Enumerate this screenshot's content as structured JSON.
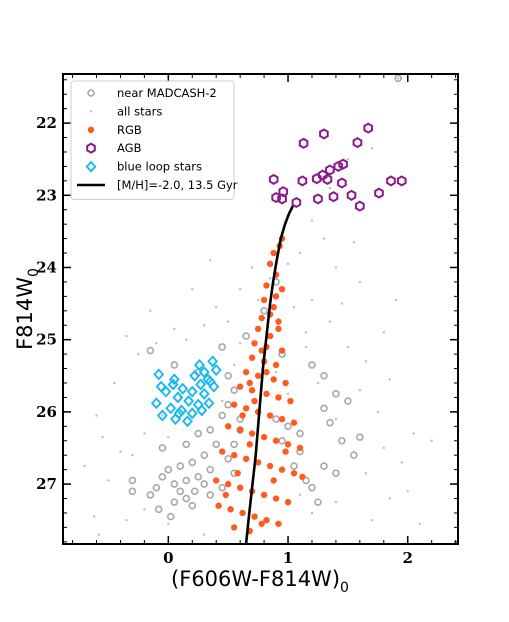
{
  "chart_data": {
    "type": "scatter",
    "xlabel": "(F606W-F814W)",
    "xlabel_sub": "0",
    "ylabel": "F814W",
    "ylabel_sub": "0",
    "xlim": [
      -0.88,
      2.42
    ],
    "ylim": [
      27.83,
      21.32
    ],
    "y_inverted": true,
    "x_ticks": [
      0,
      1,
      2
    ],
    "x_minor_step": 0.2,
    "y_ticks": [
      22,
      23,
      24,
      25,
      26,
      27
    ],
    "y_minor_step": 0.2,
    "legend_position": "top-left",
    "series": [
      {
        "name": "near MADCASH-2",
        "marker": "open-circle",
        "color": "#a8a8a8",
        "points": [
          [
            1.92,
            21.38
          ],
          [
            -0.15,
            25.15
          ],
          [
            0.05,
            25.35
          ],
          [
            0.25,
            25.45
          ],
          [
            0.5,
            25.5
          ],
          [
            0.55,
            25.7
          ],
          [
            0.5,
            25.9
          ],
          [
            0.45,
            26.05
          ],
          [
            0.6,
            26.25
          ],
          [
            0.55,
            26.45
          ],
          [
            0.4,
            26.45
          ],
          [
            0.3,
            26.6
          ],
          [
            0.2,
            26.7
          ],
          [
            0.1,
            26.75
          ],
          [
            0.0,
            26.8
          ],
          [
            -0.05,
            26.9
          ],
          [
            0.05,
            27.0
          ],
          [
            0.1,
            27.1
          ],
          [
            0.15,
            27.2
          ],
          [
            0.2,
            27.3
          ],
          [
            0.05,
            27.25
          ],
          [
            -0.1,
            27.05
          ],
          [
            -0.3,
            26.95
          ],
          [
            -0.3,
            27.1
          ],
          [
            0.25,
            26.9
          ],
          [
            0.3,
            27.0
          ],
          [
            0.35,
            27.15
          ],
          [
            0.15,
            26.95
          ],
          [
            -0.15,
            27.15
          ],
          [
            1.1,
            26.55
          ],
          [
            1.3,
            26.75
          ],
          [
            1.4,
            26.85
          ],
          [
            1.55,
            26.6
          ],
          [
            1.2,
            27.05
          ],
          [
            1.25,
            27.25
          ],
          [
            1.45,
            26.4
          ],
          [
            1.6,
            26.35
          ],
          [
            1.3,
            25.5
          ],
          [
            1.4,
            25.75
          ],
          [
            1.5,
            25.85
          ],
          [
            1.2,
            25.35
          ],
          [
            1.3,
            25.95
          ],
          [
            0.9,
            24.2
          ],
          [
            0.8,
            24.6
          ],
          [
            0.95,
            25.2
          ],
          [
            0.45,
            25.1
          ],
          [
            0.65,
            24.95
          ],
          [
            1.0,
            26.2
          ],
          [
            1.05,
            26.75
          ],
          [
            1.15,
            26.95
          ],
          [
            0.35,
            26.25
          ],
          [
            0.25,
            26.3
          ],
          [
            -0.05,
            26.5
          ],
          [
            0.55,
            26.85
          ],
          [
            0.45,
            27.05
          ],
          [
            0.5,
            26.65
          ],
          [
            0.35,
            26.8
          ],
          [
            0.22,
            27.1
          ],
          [
            0.6,
            26.1
          ],
          [
            0.15,
            26.45
          ],
          [
            1.35,
            26.15
          ],
          [
            0.9,
            26.1
          ],
          [
            0.95,
            26.4
          ],
          [
            1.1,
            26.3
          ],
          [
            -0.08,
            27.35
          ],
          [
            0.02,
            27.45
          ]
        ]
      },
      {
        "name": "all stars",
        "marker": "dot",
        "color": "#bdbdbd",
        "points": [
          [
            1.92,
            21.38
          ],
          [
            1.7,
            22.35
          ],
          [
            1.5,
            22.5
          ],
          [
            1.35,
            22.9
          ],
          [
            1.2,
            23.35
          ],
          [
            1.3,
            23.6
          ],
          [
            1.1,
            23.8
          ],
          [
            1.4,
            24.0
          ],
          [
            1.6,
            24.2
          ],
          [
            0.7,
            24.0
          ],
          [
            0.6,
            24.3
          ],
          [
            0.4,
            24.55
          ],
          [
            0.3,
            24.8
          ],
          [
            0.15,
            25.0
          ],
          [
            0.05,
            24.85
          ],
          [
            -0.1,
            25.05
          ],
          [
            -0.25,
            25.2
          ],
          [
            -0.45,
            25.6
          ],
          [
            -0.6,
            26.05
          ],
          [
            -0.55,
            26.35
          ],
          [
            -0.4,
            26.55
          ],
          [
            -0.5,
            26.95
          ],
          [
            -0.62,
            27.45
          ],
          [
            -0.35,
            27.5
          ],
          [
            -0.2,
            27.35
          ],
          [
            0.0,
            27.55
          ],
          [
            0.3,
            27.7
          ],
          [
            1.7,
            27.5
          ],
          [
            1.85,
            27.2
          ],
          [
            2.0,
            27.1
          ],
          [
            1.95,
            26.7
          ],
          [
            1.8,
            26.5
          ],
          [
            2.05,
            26.3
          ],
          [
            1.75,
            26.0
          ],
          [
            1.6,
            25.7
          ],
          [
            1.85,
            25.55
          ],
          [
            1.65,
            25.3
          ],
          [
            1.5,
            25.1
          ],
          [
            1.8,
            24.9
          ],
          [
            1.35,
            24.75
          ],
          [
            1.45,
            24.5
          ],
          [
            1.2,
            24.45
          ],
          [
            1.15,
            24.9
          ],
          [
            1.25,
            25.6
          ],
          [
            1.4,
            26.1
          ],
          [
            1.55,
            26.55
          ],
          [
            1.65,
            26.85
          ],
          [
            1.4,
            27.25
          ],
          [
            1.2,
            27.4
          ],
          [
            1.1,
            27.15
          ],
          [
            1.0,
            25.75
          ],
          [
            0.9,
            25.45
          ],
          [
            0.3,
            25.6
          ],
          [
            0.1,
            25.8
          ],
          [
            -0.05,
            26.05
          ],
          [
            -0.2,
            26.3
          ],
          [
            -0.3,
            26.6
          ],
          [
            0.0,
            26.35
          ],
          [
            0.15,
            26.0
          ],
          [
            0.45,
            25.85
          ],
          [
            0.55,
            25.35
          ],
          [
            0.6,
            25.05
          ],
          [
            0.5,
            24.75
          ],
          [
            0.75,
            24.45
          ],
          [
            0.85,
            24.15
          ],
          [
            1.0,
            23.95
          ],
          [
            1.05,
            24.55
          ],
          [
            1.15,
            25.1
          ],
          [
            -0.58,
            27.7
          ],
          [
            -0.7,
            26.75
          ],
          [
            2.2,
            26.4
          ],
          [
            2.1,
            27.55
          ],
          [
            1.55,
            23.65
          ],
          [
            1.9,
            24.45
          ],
          [
            0.35,
            23.9
          ],
          [
            0.2,
            24.3
          ],
          [
            -0.15,
            24.6
          ],
          [
            -0.35,
            24.95
          ]
        ]
      },
      {
        "name": "RGB",
        "marker": "filled-circle",
        "color": "#ff5a1f",
        "points": [
          [
            0.85,
            23.95
          ],
          [
            0.9,
            24.1
          ],
          [
            0.82,
            24.25
          ],
          [
            0.95,
            24.3
          ],
          [
            0.8,
            24.45
          ],
          [
            0.88,
            24.55
          ],
          [
            0.78,
            24.7
          ],
          [
            0.92,
            24.75
          ],
          [
            0.75,
            24.85
          ],
          [
            0.85,
            24.95
          ],
          [
            0.72,
            25.05
          ],
          [
            0.82,
            25.1
          ],
          [
            0.95,
            25.15
          ],
          [
            0.7,
            25.25
          ],
          [
            0.8,
            25.3
          ],
          [
            0.9,
            25.35
          ],
          [
            0.65,
            25.45
          ],
          [
            0.75,
            25.5
          ],
          [
            0.88,
            25.55
          ],
          [
            0.98,
            25.6
          ],
          [
            0.6,
            25.65
          ],
          [
            0.7,
            25.7
          ],
          [
            0.82,
            25.75
          ],
          [
            0.92,
            25.8
          ],
          [
            1.02,
            25.85
          ],
          [
            0.55,
            25.9
          ],
          [
            0.65,
            25.95
          ],
          [
            0.75,
            26.0
          ],
          [
            0.85,
            26.05
          ],
          [
            0.95,
            26.1
          ],
          [
            1.05,
            26.15
          ],
          [
            0.5,
            26.2
          ],
          [
            0.6,
            26.25
          ],
          [
            0.7,
            26.3
          ],
          [
            0.8,
            26.35
          ],
          [
            0.9,
            26.4
          ],
          [
            1.0,
            26.45
          ],
          [
            1.1,
            26.5
          ],
          [
            0.45,
            26.55
          ],
          [
            0.55,
            26.6
          ],
          [
            0.65,
            26.65
          ],
          [
            0.75,
            26.7
          ],
          [
            0.85,
            26.75
          ],
          [
            0.95,
            26.8
          ],
          [
            1.05,
            26.85
          ],
          [
            1.12,
            26.9
          ],
          [
            0.4,
            26.95
          ],
          [
            0.5,
            27.0
          ],
          [
            0.6,
            27.05
          ],
          [
            0.7,
            27.1
          ],
          [
            0.8,
            27.15
          ],
          [
            0.9,
            27.2
          ],
          [
            1.0,
            27.25
          ],
          [
            0.42,
            27.3
          ],
          [
            0.52,
            27.35
          ],
          [
            0.62,
            27.4
          ],
          [
            0.72,
            27.45
          ],
          [
            0.82,
            27.5
          ],
          [
            0.92,
            27.55
          ],
          [
            0.55,
            27.6
          ],
          [
            0.68,
            27.65
          ],
          [
            0.78,
            27.55
          ],
          [
            0.48,
            27.15
          ],
          [
            0.58,
            26.85
          ],
          [
            0.68,
            26.45
          ],
          [
            0.88,
            26.95
          ],
          [
            0.98,
            26.55
          ],
          [
            0.62,
            26.05
          ],
          [
            0.72,
            25.85
          ],
          [
            0.82,
            25.45
          ],
          [
            0.78,
            25.15
          ],
          [
            0.85,
            24.65
          ],
          [
            0.9,
            24.4
          ],
          [
            0.95,
            23.6
          ],
          [
            0.88,
            23.8
          ],
          [
            0.93,
            23.7
          ],
          [
            0.92,
            24.85
          ],
          [
            0.68,
            25.6
          ]
        ]
      },
      {
        "name": "AGB",
        "marker": "open-hexagon",
        "color": "#8b1a8b",
        "points": [
          [
            1.67,
            22.07
          ],
          [
            1.3,
            22.15
          ],
          [
            1.13,
            22.28
          ],
          [
            1.58,
            22.27
          ],
          [
            1.46,
            22.57
          ],
          [
            1.42,
            22.6
          ],
          [
            1.35,
            22.65
          ],
          [
            1.29,
            22.72
          ],
          [
            1.24,
            22.77
          ],
          [
            1.33,
            22.78
          ],
          [
            0.88,
            22.78
          ],
          [
            1.12,
            22.8
          ],
          [
            1.86,
            22.8
          ],
          [
            1.95,
            22.8
          ],
          [
            1.45,
            22.83
          ],
          [
            1.76,
            22.97
          ],
          [
            0.96,
            22.95
          ],
          [
            1.53,
            23.0
          ],
          [
            0.95,
            23.05
          ],
          [
            0.9,
            23.03
          ],
          [
            1.38,
            23.02
          ],
          [
            1.07,
            23.1
          ],
          [
            1.25,
            23.05
          ],
          [
            1.6,
            23.15
          ]
        ]
      },
      {
        "name": "blue loop stars",
        "marker": "open-diamond",
        "color": "#1ab8f0",
        "points": [
          [
            0.37,
            25.3
          ],
          [
            0.26,
            25.35
          ],
          [
            0.3,
            25.45
          ],
          [
            0.4,
            25.42
          ],
          [
            0.22,
            25.5
          ],
          [
            0.33,
            25.55
          ],
          [
            -0.08,
            25.48
          ],
          [
            0.05,
            25.55
          ],
          [
            0.27,
            25.62
          ],
          [
            0.38,
            25.65
          ],
          [
            0.12,
            25.68
          ],
          [
            -0.02,
            25.72
          ],
          [
            0.2,
            25.72
          ],
          [
            0.3,
            25.75
          ],
          [
            0.08,
            25.8
          ],
          [
            -0.1,
            25.88
          ],
          [
            0.17,
            25.85
          ],
          [
            0.25,
            25.9
          ],
          [
            0.34,
            25.88
          ],
          [
            0.02,
            25.95
          ],
          [
            0.11,
            25.98
          ],
          [
            0.2,
            26.02
          ],
          [
            0.28,
            25.98
          ],
          [
            -0.05,
            26.05
          ],
          [
            0.06,
            26.1
          ],
          [
            0.16,
            26.13
          ],
          [
            0.04,
            25.62
          ],
          [
            -0.06,
            25.65
          ],
          [
            0.35,
            25.58
          ],
          [
            0.09,
            26.02
          ]
        ]
      }
    ],
    "isochrone": {
      "name": "[M/H]=-2.0, 13.5 Gyr",
      "color": "#000000",
      "points": [
        [
          0.65,
          27.83
        ],
        [
          0.67,
          27.5
        ],
        [
          0.69,
          27.2
        ],
        [
          0.71,
          26.9
        ],
        [
          0.73,
          26.6
        ],
        [
          0.745,
          26.3
        ],
        [
          0.76,
          26.0
        ],
        [
          0.775,
          25.7
        ],
        [
          0.79,
          25.4
        ],
        [
          0.81,
          25.1
        ],
        [
          0.83,
          24.8
        ],
        [
          0.85,
          24.5
        ],
        [
          0.875,
          24.2
        ],
        [
          0.905,
          23.9
        ],
        [
          0.94,
          23.6
        ],
        [
          0.975,
          23.4
        ],
        [
          1.01,
          23.25
        ],
        [
          1.04,
          23.15
        ]
      ]
    }
  }
}
